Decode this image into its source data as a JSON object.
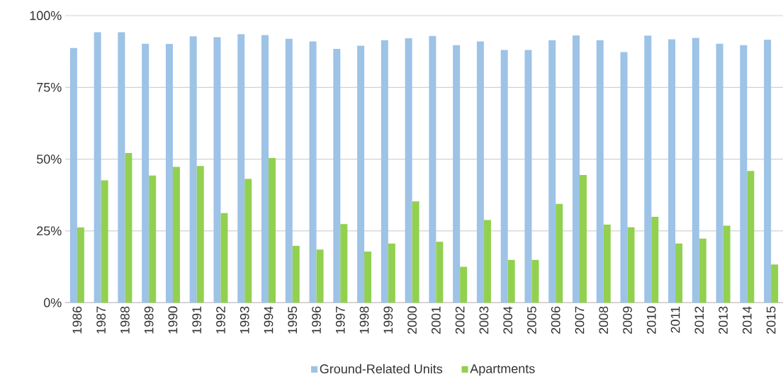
{
  "chart_data": {
    "type": "bar",
    "categories": [
      "1986",
      "1987",
      "1988",
      "1989",
      "1990",
      "1991",
      "1992",
      "1993",
      "1994",
      "1995",
      "1996",
      "1997",
      "1998",
      "1999",
      "2000",
      "2001",
      "2002",
      "2003",
      "2004",
      "2005",
      "2006",
      "2007",
      "2008",
      "2009",
      "2010",
      "2011",
      "2012",
      "2013",
      "2014",
      "2015"
    ],
    "series": [
      {
        "name": "Ground-Related Units",
        "color": "#9dc3e6",
        "values": [
          88.7,
          94.2,
          94.2,
          90.2,
          90.1,
          92.8,
          92.5,
          93.5,
          93.2,
          91.9,
          91.0,
          88.4,
          89.5,
          91.4,
          92.1,
          92.9,
          89.7,
          91.0,
          88.0,
          88.0,
          91.4,
          93.1,
          91.4,
          87.3,
          93.0,
          91.7,
          92.2,
          90.2,
          89.7,
          91.6
        ]
      },
      {
        "name": "Apartments",
        "color": "#92d050",
        "values": [
          26.2,
          42.6,
          52.1,
          44.3,
          47.3,
          47.6,
          31.2,
          43.1,
          50.4,
          19.8,
          18.5,
          27.4,
          17.8,
          20.6,
          35.3,
          21.2,
          12.5,
          28.8,
          14.9,
          14.9,
          34.4,
          44.5,
          27.2,
          26.3,
          29.9,
          20.6,
          22.3,
          26.8,
          45.9,
          13.3
        ]
      }
    ],
    "ylim": [
      0,
      100
    ],
    "yticks": [
      {
        "value": 0,
        "label": "0%"
      },
      {
        "value": 25,
        "label": "25%"
      },
      {
        "value": 50,
        "label": "50%"
      },
      {
        "value": 75,
        "label": "75%"
      },
      {
        "value": 100,
        "label": "100%"
      }
    ],
    "grid": "y",
    "legend": "bottom"
  }
}
